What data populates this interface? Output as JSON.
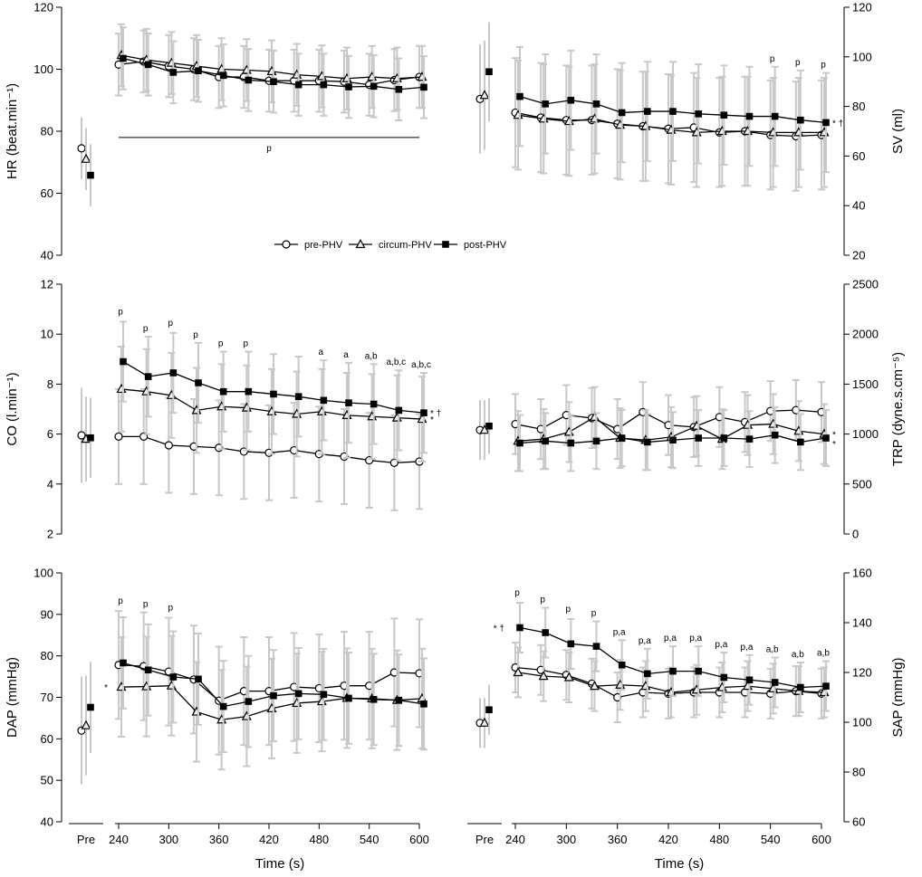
{
  "legend": [
    {
      "name": "pre-PHV",
      "marker": "circle-open"
    },
    {
      "name": "circum-PHV",
      "marker": "triangle-open"
    },
    {
      "name": "post-PHV",
      "marker": "square-filled"
    }
  ],
  "x_title": "Time (s)",
  "x_ticks": [
    240,
    300,
    360,
    420,
    480,
    540,
    600
  ],
  "pre_label": "Pre",
  "colors": {
    "series": "#000000",
    "errorbar": "#c8c8c8",
    "axis": "#000000"
  },
  "chart_data": [
    {
      "id": "HR",
      "type": "line",
      "title": "",
      "ylabel": "HR (beat.min⁻¹)",
      "yaxis_side": "left",
      "ylim": [
        40,
        120
      ],
      "yticks": [
        40,
        60,
        80,
        100,
        120
      ],
      "xlim": [
        240,
        600
      ],
      "x": [
        240,
        270,
        300,
        330,
        360,
        390,
        420,
        450,
        480,
        510,
        540,
        570,
        600
      ],
      "series": [
        {
          "name": "pre-PHV",
          "pre": 74.5,
          "values": [
            101.5,
            102.5,
            101,
            100,
            97.5,
            97.5,
            96.3,
            96.3,
            96.3,
            96,
            95,
            96.5,
            97.5
          ],
          "sd": 10
        },
        {
          "name": "circum-PHV",
          "pre": 71,
          "values": [
            104.5,
            103,
            102,
            101,
            100,
            99.7,
            99.3,
            98.2,
            97.7,
            97,
            97.5,
            97,
            97.5
          ],
          "sd": 10
        },
        {
          "name": "post-PHV",
          "pre": 65.8,
          "values": [
            103.5,
            101.5,
            99,
            99.5,
            98,
            96.5,
            96,
            95,
            95,
            94.3,
            94.5,
            93.5,
            94.2
          ],
          "sd": 10
        }
      ],
      "annotations": [
        {
          "text": "p",
          "span": [
            240,
            600
          ]
        }
      ]
    },
    {
      "id": "SV",
      "type": "line",
      "title": "",
      "ylabel": "SV (ml)",
      "yaxis_side": "right",
      "ylim": [
        20,
        120
      ],
      "yticks": [
        20,
        40,
        60,
        80,
        100,
        120
      ],
      "xlim": [
        240,
        600
      ],
      "x": [
        240,
        270,
        300,
        330,
        360,
        390,
        420,
        450,
        480,
        510,
        540,
        570,
        600
      ],
      "series": [
        {
          "name": "pre-PHV",
          "pre": 83,
          "values": [
            77.5,
            75.5,
            74.5,
            74.5,
            73,
            72,
            71,
            71.5,
            69.5,
            70,
            68.5,
            68,
            68.5
          ],
          "sd": 22
        },
        {
          "name": "circum-PHV",
          "pre": 84.5,
          "values": [
            76.5,
            75,
            74,
            75,
            72.5,
            72,
            70.5,
            69.5,
            70,
            70,
            69.5,
            69.5,
            69.5
          ],
          "sd": 22
        },
        {
          "name": "post-PHV",
          "pre": 94,
          "values": [
            84,
            81,
            82.5,
            81,
            77.5,
            78,
            78,
            77,
            76.5,
            76,
            76,
            74.5,
            73.5
          ],
          "sd": 20
        }
      ],
      "annotations": [
        {
          "text": "p",
          "x": 540
        },
        {
          "text": "p",
          "x": 570
        },
        {
          "text": "p",
          "x": 600
        },
        {
          "text": "* †",
          "series": "post-PHV"
        }
      ]
    },
    {
      "id": "CO",
      "type": "line",
      "title": "",
      "ylabel": "CO (l.min⁻¹)",
      "yaxis_side": "left",
      "ylim": [
        2,
        12
      ],
      "yticks": [
        2,
        4,
        6,
        8,
        10,
        12
      ],
      "xlim": [
        240,
        600
      ],
      "x": [
        240,
        270,
        300,
        330,
        360,
        390,
        420,
        450,
        480,
        510,
        540,
        570,
        600
      ],
      "series": [
        {
          "name": "pre-PHV",
          "pre": 5.95,
          "values": [
            5.9,
            5.9,
            5.55,
            5.5,
            5.45,
            5.3,
            5.25,
            5.35,
            5.2,
            5.1,
            4.95,
            4.85,
            4.9
          ],
          "sd": 1.9
        },
        {
          "name": "circum-PHV",
          "pre": 5.8,
          "values": [
            7.8,
            7.7,
            7.55,
            6.95,
            7.1,
            7.05,
            6.9,
            6.8,
            6.9,
            6.75,
            6.7,
            6.65,
            6.6
          ],
          "sd": 1.7
        },
        {
          "name": "post-PHV",
          "pre": 5.85,
          "values": [
            8.9,
            8.3,
            8.45,
            8.05,
            7.7,
            7.7,
            7.6,
            7.5,
            7.35,
            7.25,
            7.2,
            6.95,
            6.85
          ],
          "sd": 1.6
        }
      ],
      "annotations": [
        {
          "text": "p",
          "x": 240
        },
        {
          "text": "p",
          "x": 270
        },
        {
          "text": "p",
          "x": 300
        },
        {
          "text": "p",
          "x": 330
        },
        {
          "text": "p",
          "x": 360
        },
        {
          "text": "p",
          "x": 390
        },
        {
          "text": "a",
          "x": 480
        },
        {
          "text": "a",
          "x": 510
        },
        {
          "text": "a,b",
          "x": 540
        },
        {
          "text": "a,b,c",
          "x": 570
        },
        {
          "text": "a,b,c",
          "x": 600
        },
        {
          "text": "* †",
          "series": "post-PHV"
        },
        {
          "text": "*",
          "series": "circum-PHV"
        }
      ]
    },
    {
      "id": "TRP",
      "type": "line",
      "title": "",
      "ylabel": "TRP (dyne.s.cm⁻⁵)",
      "yaxis_side": "right",
      "ylim": [
        0,
        2500
      ],
      "yticks": [
        0,
        500,
        1000,
        1500,
        2000,
        2500
      ],
      "xlim": [
        240,
        600
      ],
      "x": [
        240,
        270,
        300,
        330,
        360,
        390,
        420,
        450,
        480,
        510,
        540,
        570,
        600
      ],
      "series": [
        {
          "name": "pre-PHV",
          "pre": 1040,
          "values": [
            1100,
            1050,
            1190,
            1160,
            1050,
            1220,
            1090,
            1070,
            1170,
            1120,
            1230,
            1240,
            1220
          ],
          "sd": 300
        },
        {
          "name": "circum-PHV",
          "pre": 1040,
          "values": [
            930,
            950,
            1020,
            1170,
            960,
            940,
            970,
            1080,
            950,
            1090,
            1100,
            1030,
            1000
          ],
          "sd": 300
        },
        {
          "name": "post-PHV",
          "pre": 1080,
          "values": [
            910,
            930,
            910,
            930,
            960,
            920,
            940,
            960,
            960,
            950,
            990,
            920,
            960
          ],
          "sd": 280
        }
      ],
      "annotations": [
        {
          "text": "*",
          "series": "circum-PHV"
        },
        {
          "text": "*",
          "series": "post-PHV"
        }
      ]
    },
    {
      "id": "DAP",
      "type": "line",
      "title": "",
      "ylabel": "DAP (mmHg)",
      "yaxis_side": "left",
      "ylim": [
        40,
        100
      ],
      "yticks": [
        40,
        50,
        60,
        70,
        80,
        90,
        100
      ],
      "xlim": [
        240,
        600
      ],
      "x": [
        240,
        270,
        300,
        330,
        360,
        390,
        420,
        450,
        480,
        510,
        540,
        570,
        600
      ],
      "series": [
        {
          "name": "pre-PHV",
          "pre": 62,
          "values": [
            77.8,
            77.5,
            76.2,
            74.3,
            69.2,
            71.5,
            71.5,
            72.5,
            72.2,
            72.8,
            72.8,
            76,
            75.8
          ],
          "sd": 13
        },
        {
          "name": "circum-PHV",
          "pre": 63.2,
          "values": [
            72.5,
            72.6,
            72.8,
            66.5,
            64.6,
            65.4,
            67.3,
            68.6,
            69,
            69.8,
            69.7,
            69.3,
            69.7
          ],
          "sd": 12
        },
        {
          "name": "post-PHV",
          "pre": 67.6,
          "values": [
            78.3,
            76.6,
            74.9,
            74.4,
            67.8,
            69,
            70.4,
            70.9,
            70.7,
            69.8,
            69.5,
            69.3,
            68.4
          ],
          "sd": 11
        }
      ],
      "annotations": [
        {
          "text": "p",
          "x": 240
        },
        {
          "text": "p",
          "x": 270
        },
        {
          "text": "p",
          "x": 300
        },
        {
          "text": "*",
          "series": "circum-PHV",
          "side": "left"
        }
      ]
    },
    {
      "id": "SAP",
      "type": "line",
      "title": "",
      "ylabel": "SAP (mmHg)",
      "yaxis_side": "right",
      "ylim": [
        60,
        160
      ],
      "yticks": [
        60,
        80,
        100,
        120,
        140,
        160
      ],
      "xlim": [
        240,
        600
      ],
      "x": [
        240,
        270,
        300,
        330,
        360,
        390,
        420,
        450,
        480,
        510,
        540,
        570,
        600
      ],
      "series": [
        {
          "name": "pre-PHV",
          "pre": 99.7,
          "values": [
            122,
            121,
            119,
            115.5,
            110,
            112,
            111.5,
            112,
            112,
            112,
            111.5,
            112.5,
            111.5
          ],
          "sd": 10
        },
        {
          "name": "circum-PHV",
          "pre": 99.7,
          "values": [
            120,
            118.5,
            118,
            114.5,
            115,
            114.5,
            112,
            113,
            114,
            114.5,
            113.5,
            112.5,
            112
          ],
          "sd": 10
        },
        {
          "name": "post-PHV",
          "pre": 105,
          "values": [
            138,
            136,
            131.5,
            130.5,
            123,
            119.5,
            120.5,
            120.5,
            118,
            117,
            116,
            114,
            114.5
          ],
          "sd": 10
        }
      ],
      "annotations": [
        {
          "text": "p",
          "x": 240
        },
        {
          "text": "p",
          "x": 270
        },
        {
          "text": "p",
          "x": 300
        },
        {
          "text": "p",
          "x": 330
        },
        {
          "text": "p,a",
          "x": 360
        },
        {
          "text": "p,a",
          "x": 390
        },
        {
          "text": "p,a",
          "x": 420
        },
        {
          "text": "p,a",
          "x": 450
        },
        {
          "text": "p,a",
          "x": 480
        },
        {
          "text": "p,a",
          "x": 510
        },
        {
          "text": "a,b",
          "x": 540
        },
        {
          "text": "a,b",
          "x": 570
        },
        {
          "text": "a,b",
          "x": 600
        },
        {
          "text": "* †",
          "series": "post-PHV",
          "side": "left"
        }
      ]
    }
  ]
}
